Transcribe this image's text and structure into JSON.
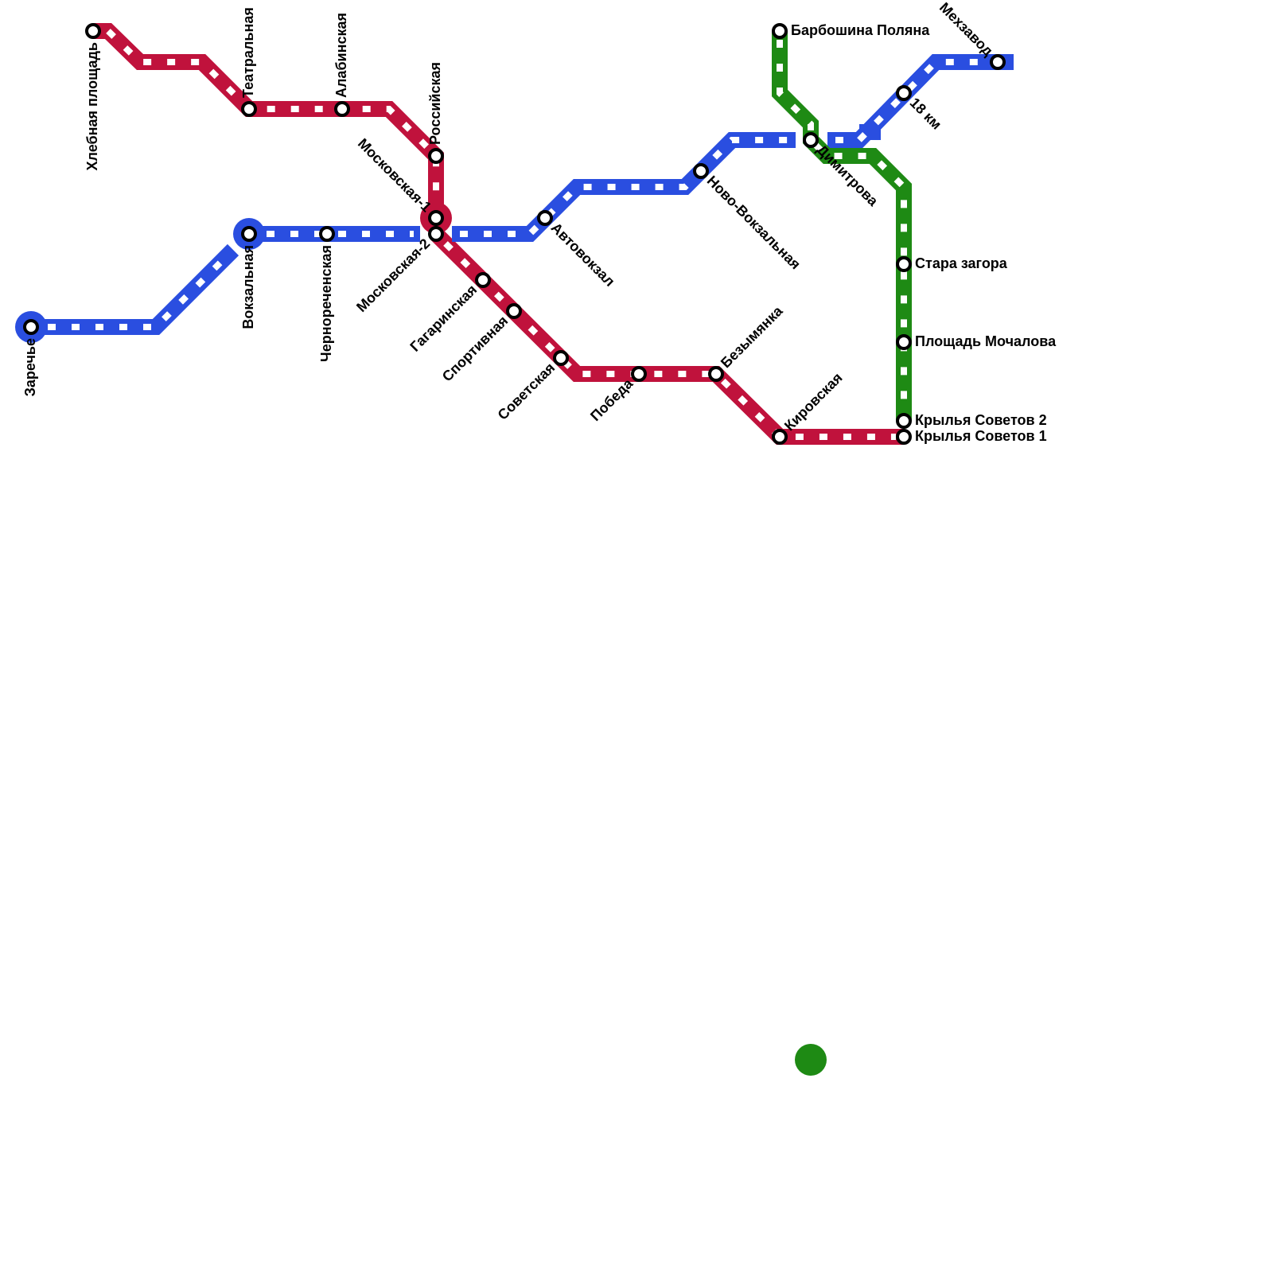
{
  "stations": [
    {
      "name": "Хлебная площадь"
    },
    {
      "name": "Театральная"
    },
    {
      "name": "Алабинская"
    },
    {
      "name": "Российская"
    },
    {
      "name": "Московская-1"
    },
    {
      "name": "Московская-2"
    },
    {
      "name": "Вокзальная"
    },
    {
      "name": "Чернореченская"
    },
    {
      "name": "Заречье"
    },
    {
      "name": "Гагаринская"
    },
    {
      "name": "Спортивная"
    },
    {
      "name": "Советская"
    },
    {
      "name": "Победа"
    },
    {
      "name": "Безымянка"
    },
    {
      "name": "Кировская"
    },
    {
      "name": "Автовокзал"
    },
    {
      "name": "Ново-Вокзальная"
    },
    {
      "name": "Димитрова"
    },
    {
      "name": "18 км"
    },
    {
      "name": "Мехзавод"
    },
    {
      "name": "Барбошина Поляна"
    },
    {
      "name": "Стара загора"
    },
    {
      "name": "Площадь Мочалова"
    },
    {
      "name": "Крылья Советов 2"
    },
    {
      "name": "Крылья Советов 1"
    }
  ]
}
